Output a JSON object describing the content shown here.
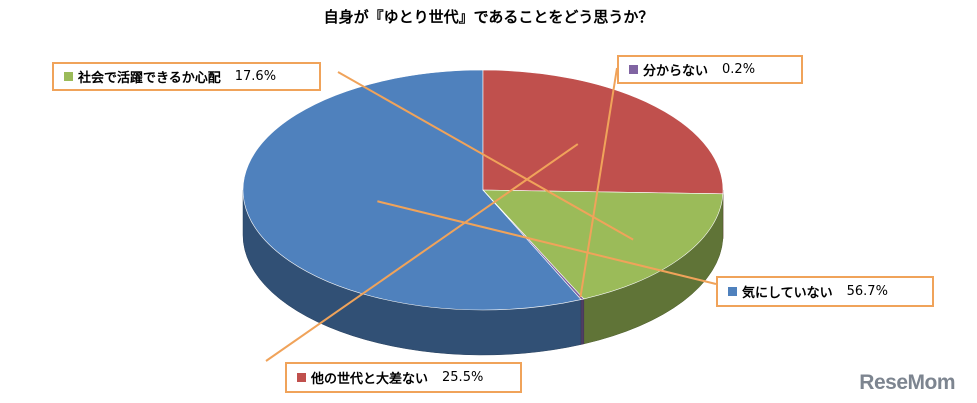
{
  "logo": "ReseMom",
  "chart_data": {
    "type": "pie",
    "title": "自身が『ゆとり世代』であることをどう思うか？",
    "slices": [
      {
        "label": "気にしていない",
        "value": 56.7,
        "value_label": "56.7%",
        "color": "#4f81bd"
      },
      {
        "label": "他の世代と大差ない",
        "value": 25.5,
        "value_label": "25.5%",
        "color": "#c0504d"
      },
      {
        "label": "社会で活躍できるか心配",
        "value": 17.6,
        "value_label": "17.6%",
        "color": "#9bbb59"
      },
      {
        "label": "分からない",
        "value": 0.2,
        "value_label": "0.2%",
        "color": "#8064a2"
      }
    ],
    "legend": "callout labels",
    "callout_border_color": "#f0a35a"
  }
}
